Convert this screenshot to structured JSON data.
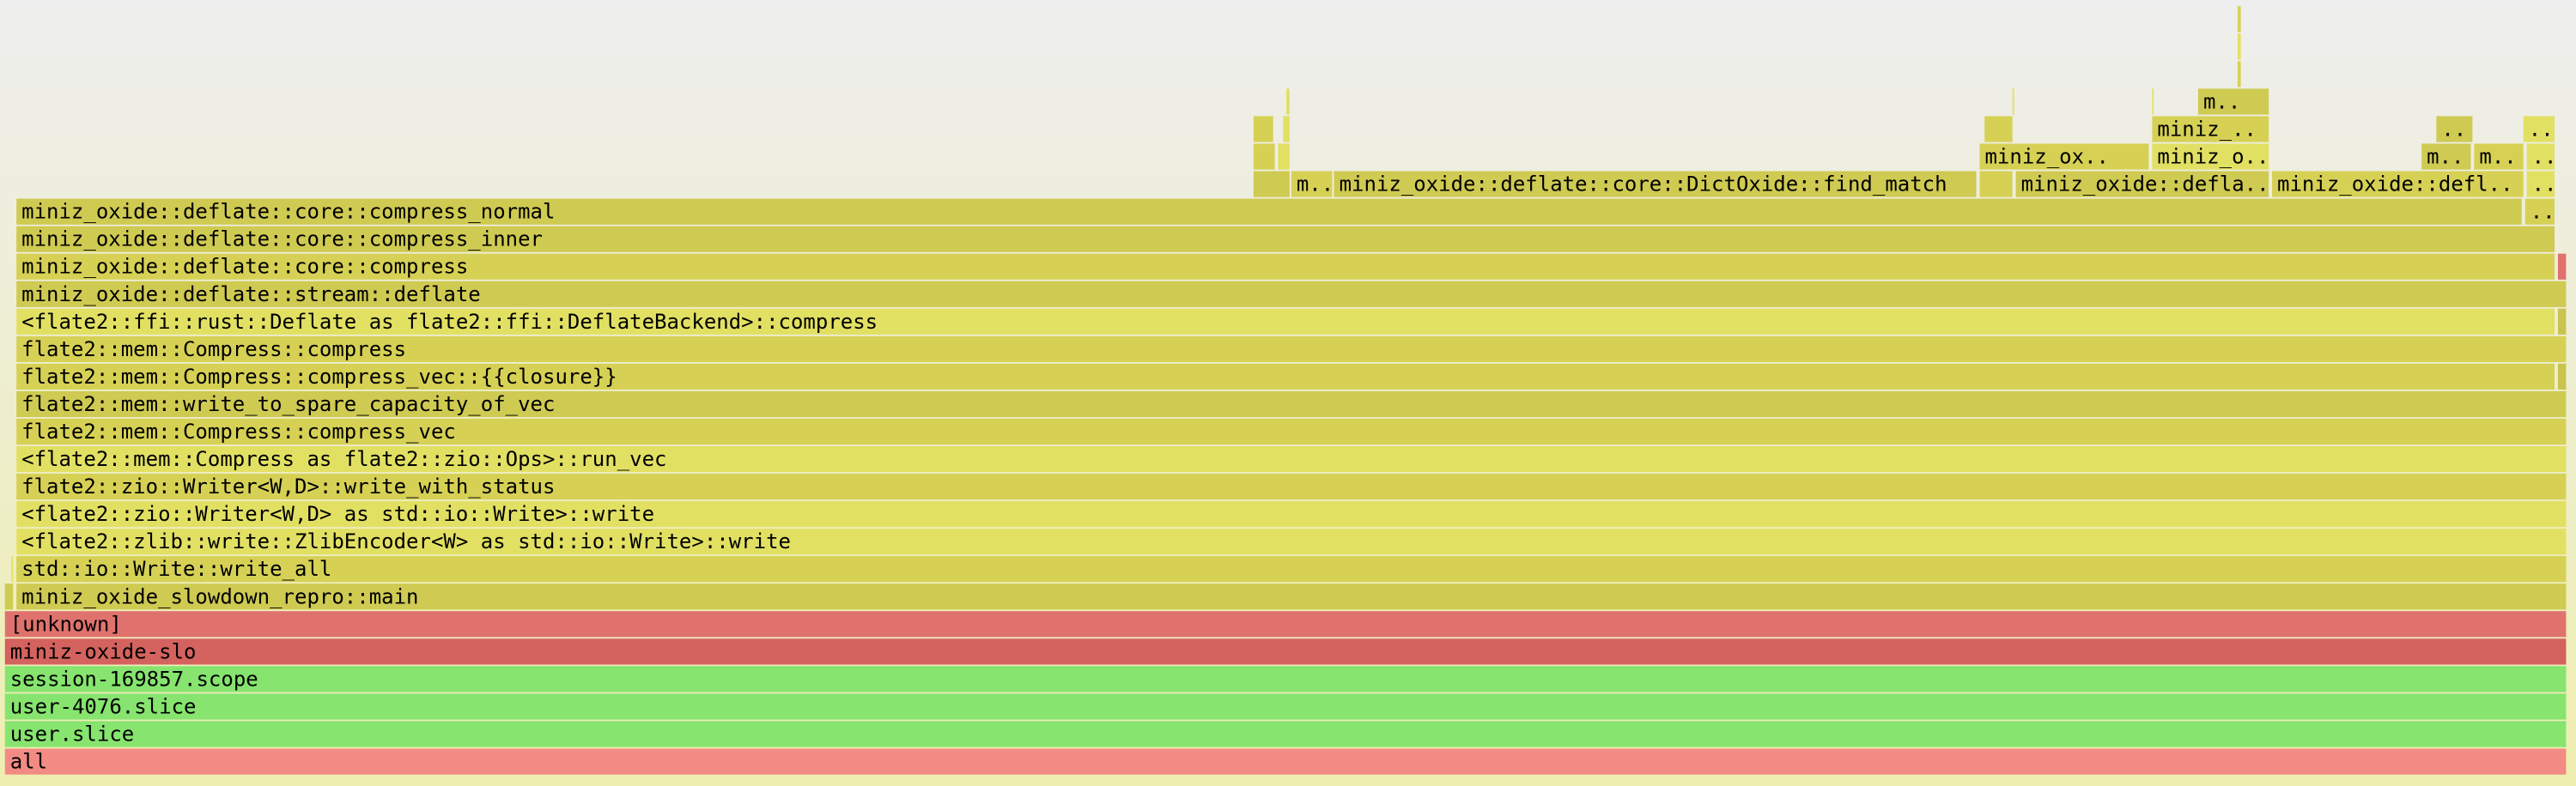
{
  "frames": [
    "all",
    "user.slice",
    "user-4076.slice",
    "session-169857.scope",
    "miniz-oxide-slo",
    "[unknown]",
    "miniz_oxide_slowdown_repro::main",
    "std::io::Write::write_all",
    "<flate2::zlib::write::ZlibEncoder<W> as std::io::Write>::write",
    "<flate2::zio::Writer<W,D> as std::io::Write>::write",
    "flate2::zio::Writer<W,D>::write_with_status",
    "<flate2::mem::Compress as flate2::zio::Ops>::run_vec",
    "flate2::mem::Compress::compress_vec",
    "flate2::mem::write_to_spare_capacity_of_vec",
    "flate2::mem::Compress::compress_vec::{{closure}}",
    "flate2::mem::Compress::compress",
    "<flate2::ffi::rust::Deflate as flate2::ffi::DeflateBackend>::compress",
    "miniz_oxide::deflate::stream::deflate",
    "miniz_oxide::deflate::core::compress",
    "miniz_oxide::deflate::core::compress_inner",
    "miniz_oxide::deflate::core::compress_normal",
    "..",
    "m..",
    "miniz_oxide::deflate::core::DictOxide::find_match",
    "miniz_oxide::defla..",
    "miniz_oxide::defl..",
    "..",
    "miniz_ox..",
    "miniz_o..",
    "m..",
    "m..",
    "..",
    "miniz_..",
    "..",
    "..",
    "m.."
  ]
}
